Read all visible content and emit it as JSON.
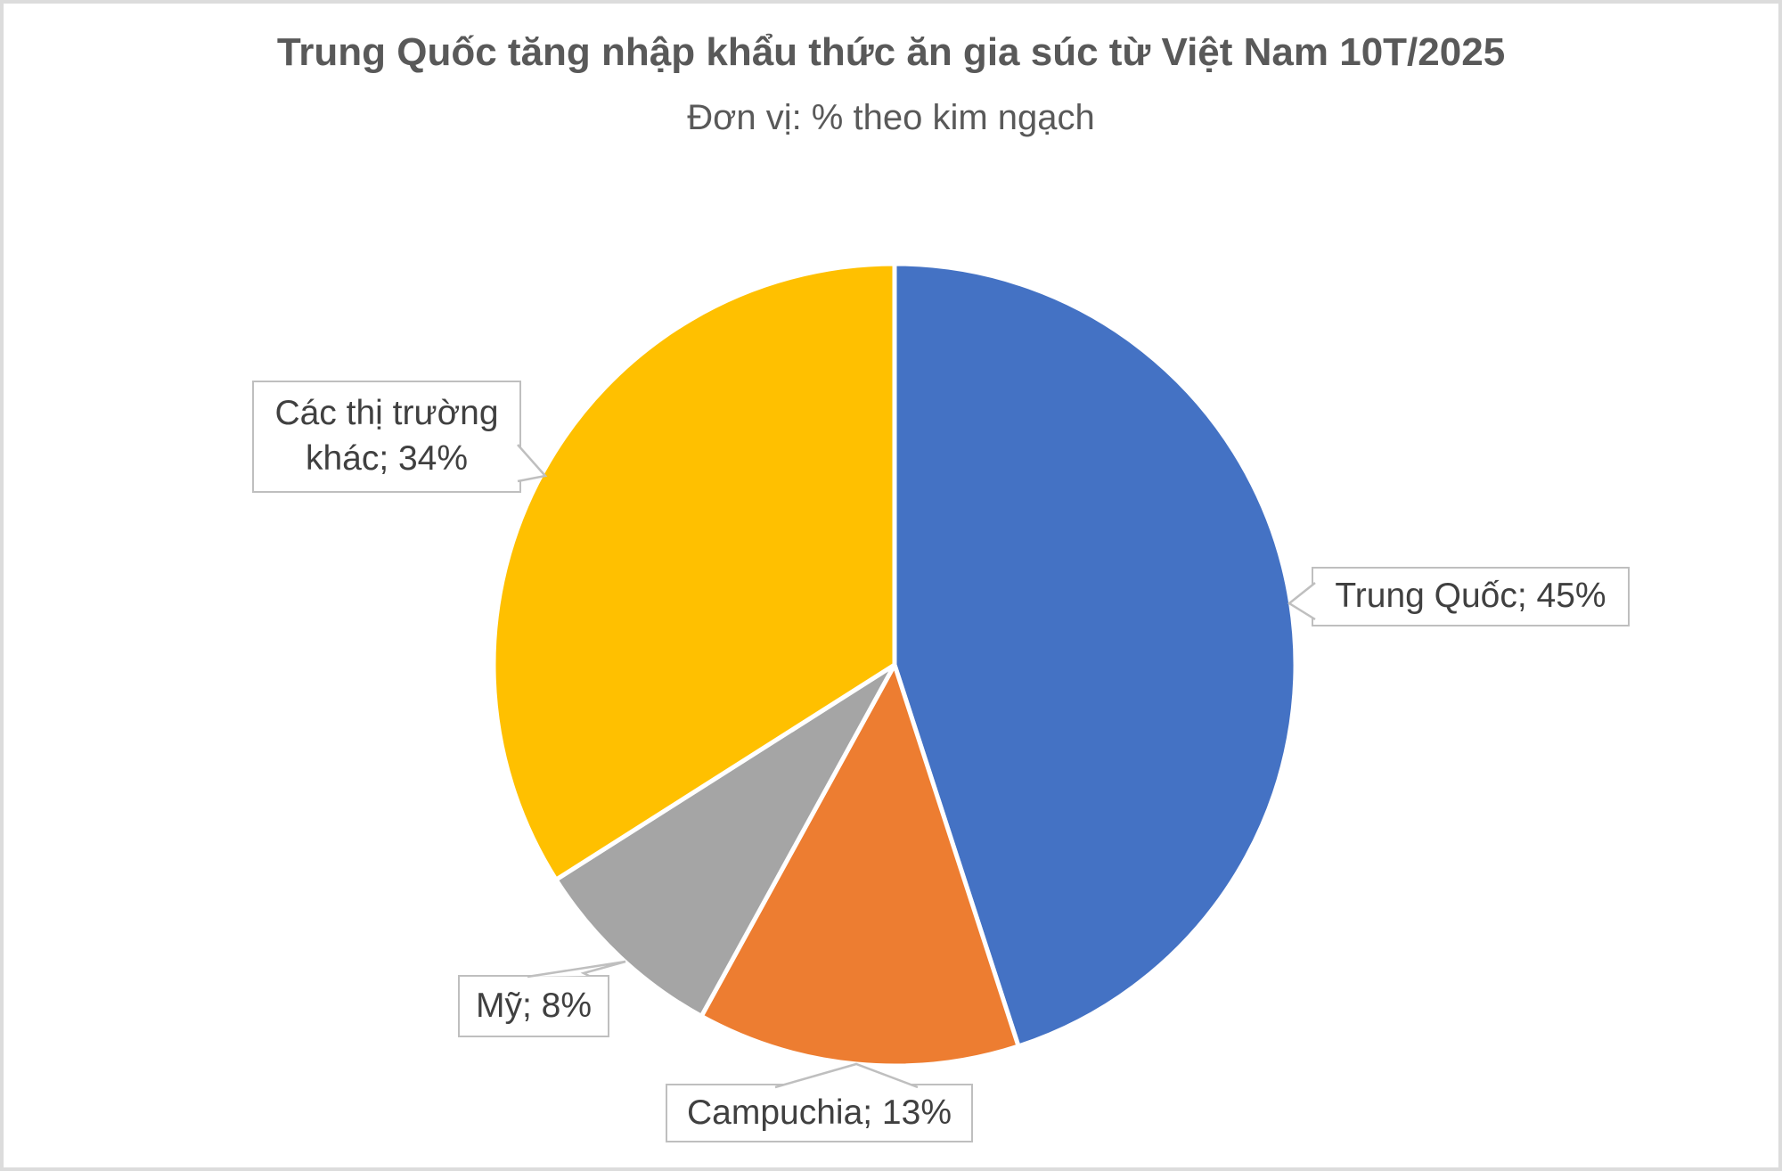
{
  "chart_data": {
    "type": "pie",
    "title": "Trung Quốc tăng nhập khẩu thức ăn gia súc từ Việt Nam 10T/2025",
    "subtitle": "Đơn vị: % theo kim ngạch",
    "unit": "% theo kim ngạch",
    "direction": "clockwise",
    "start_angle_deg": 0,
    "legend_position": "none",
    "label_style": "callout-boxes",
    "slices": [
      {
        "label": "Trung Quốc",
        "value": 45,
        "color": "#4472C4",
        "callout": "Trung Quốc; 45%"
      },
      {
        "label": "Campuchia",
        "value": 13,
        "color": "#ED7D31",
        "callout": "Campuchia; 13%"
      },
      {
        "label": "Mỹ",
        "value": 8,
        "color": "#A5A5A5",
        "callout": "Mỹ; 8%"
      },
      {
        "label": "Các thị trường khác",
        "value": 34,
        "color": "#FFC000",
        "callout": "Các thị trường khác; 34%"
      }
    ]
  },
  "style": {
    "title_color": "#595959",
    "label_text_color": "#404040",
    "callout_border_color": "#BFBFBF",
    "callout_fill": "#FFFFFF",
    "slice_separator_color": "#FFFFFF",
    "frame_border_color": "#DCDCDC",
    "background": "#FFFFFF"
  }
}
